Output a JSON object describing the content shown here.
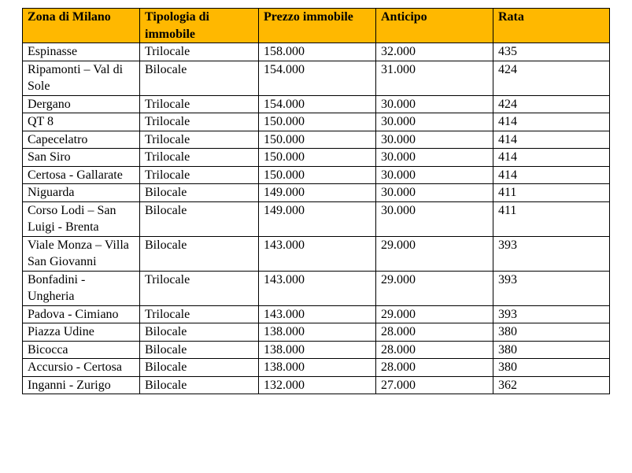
{
  "table": {
    "headers": [
      "Zona di Milano",
      "Tipologia di immobile",
      "Prezzo immobile",
      "Anticipo",
      "Rata"
    ],
    "rows": [
      [
        "Espinasse",
        "Trilocale",
        "158.000",
        "32.000",
        "435"
      ],
      [
        "Ripamonti – Val di Sole",
        "Bilocale",
        "154.000",
        "31.000",
        "424"
      ],
      [
        "Dergano",
        "Trilocale",
        "154.000",
        "30.000",
        "424"
      ],
      [
        "QT 8",
        "Trilocale",
        "150.000",
        "30.000",
        "414"
      ],
      [
        "Capecelatro",
        "Trilocale",
        "150.000",
        "30.000",
        "414"
      ],
      [
        "San Siro",
        "Trilocale",
        "150.000",
        "30.000",
        "414"
      ],
      [
        "Certosa - Gallarate",
        "Trilocale",
        "150.000",
        "30.000",
        "414"
      ],
      [
        "Niguarda",
        "Bilocale",
        "149.000",
        "30.000",
        "411"
      ],
      [
        "Corso Lodi – San Luigi - Brenta",
        "Bilocale",
        "149.000",
        "30.000",
        "411"
      ],
      [
        "Viale Monza – Villa San Giovanni",
        "Bilocale",
        "143.000",
        "29.000",
        "393"
      ],
      [
        "Bonfadini - Ungheria",
        "Trilocale",
        "143.000",
        "29.000",
        "393"
      ],
      [
        "Padova - Cimiano",
        "Trilocale",
        "143.000",
        "29.000",
        "393"
      ],
      [
        "Piazza Udine",
        "Bilocale",
        "138.000",
        "28.000",
        "380"
      ],
      [
        "Bicocca",
        "Bilocale",
        "138.000",
        "28.000",
        "380"
      ],
      [
        "Accursio - Certosa",
        "Bilocale",
        "138.000",
        "28.000",
        "380"
      ],
      [
        "Inganni - Zurigo",
        "Bilocale",
        "132.000",
        "27.000",
        "362"
      ]
    ]
  },
  "colors": {
    "header_background": "#ffb800",
    "border": "#000000"
  }
}
